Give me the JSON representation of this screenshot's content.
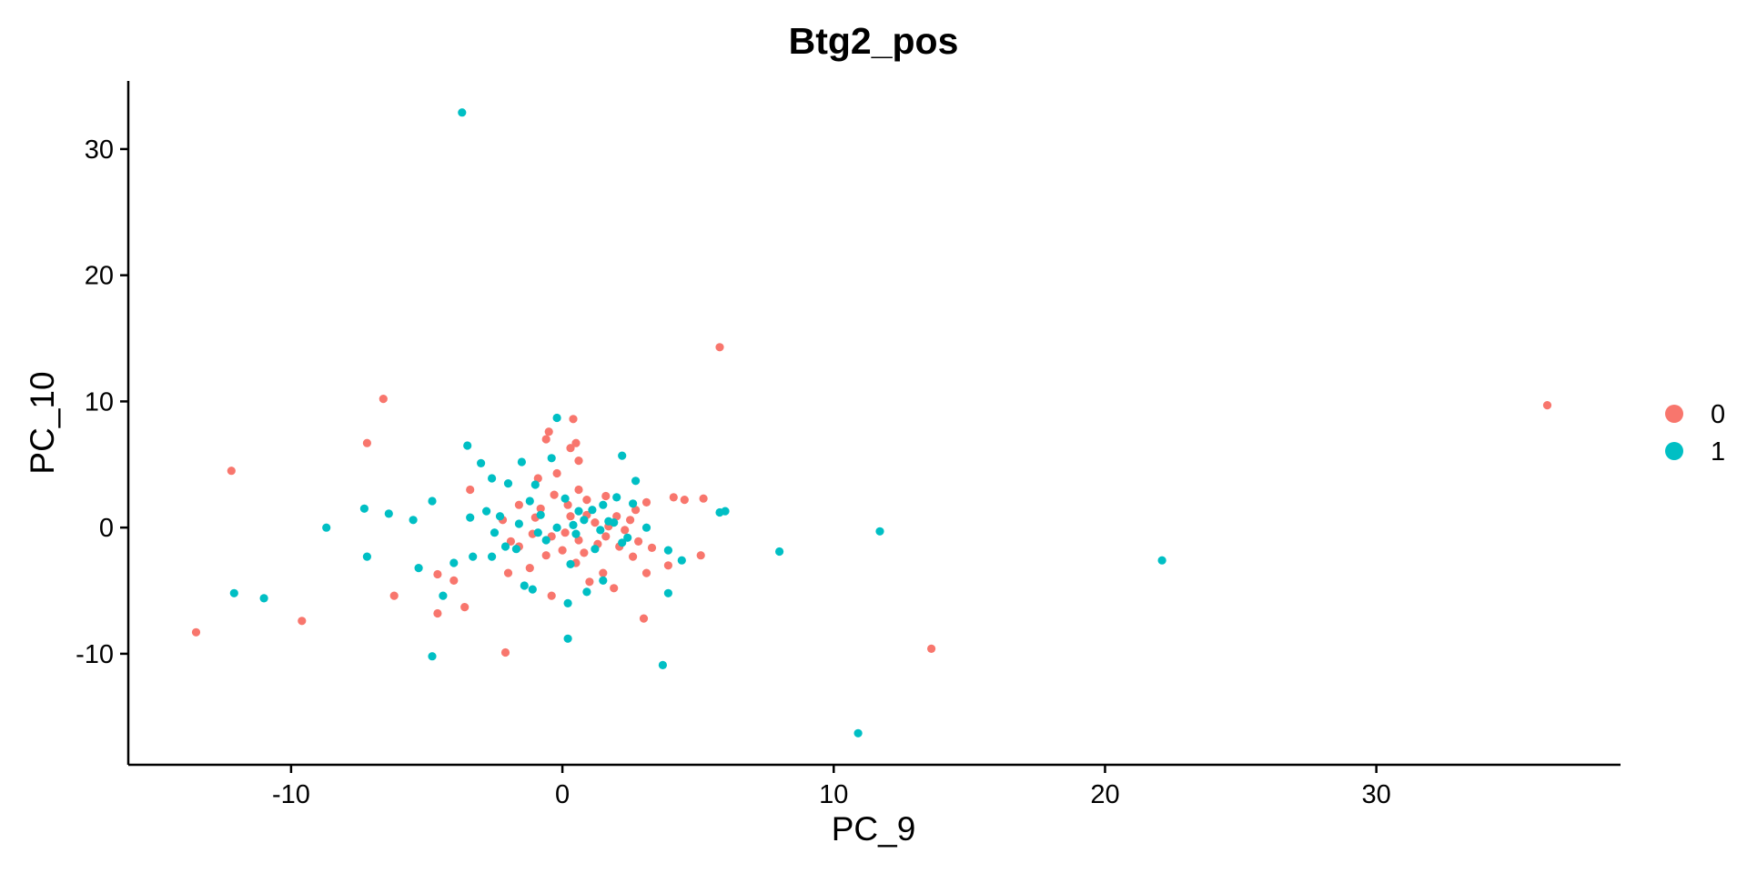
{
  "chart_data": {
    "type": "scatter",
    "title": "Btg2_pos",
    "xlabel": "PC_9",
    "ylabel": "PC_10",
    "xlim": [
      -16,
      39
    ],
    "ylim": [
      -18.8,
      35.4
    ],
    "x_ticks": [
      -10,
      0,
      10,
      20,
      30
    ],
    "y_ticks": [
      -10,
      0,
      10,
      20,
      30
    ],
    "x_tick_labels": [
      "-10",
      "0",
      "10",
      "20",
      "30"
    ],
    "y_tick_labels": [
      "-10",
      "0",
      "10",
      "20",
      "30"
    ],
    "grid": false,
    "legend_position": "right",
    "series": [
      {
        "name": "0",
        "color": "#F8766D",
        "points": [
          [
            36.3,
            9.7
          ],
          [
            5.8,
            14.3
          ],
          [
            -6.6,
            10.2
          ],
          [
            -7.2,
            6.7
          ],
          [
            -12.2,
            4.5
          ],
          [
            -13.5,
            -8.3
          ],
          [
            -9.6,
            -7.4
          ],
          [
            -6.2,
            -5.4
          ],
          [
            -4.6,
            -6.8
          ],
          [
            -4.6,
            -3.7
          ],
          [
            -3.6,
            -6.3
          ],
          [
            -2.1,
            -9.9
          ],
          [
            13.6,
            -9.6
          ],
          [
            3.0,
            -7.2
          ],
          [
            -0.5,
            7.6
          ],
          [
            0.4,
            8.6
          ],
          [
            0.3,
            6.3
          ],
          [
            0.5,
            6.7
          ],
          [
            0.6,
            5.3
          ],
          [
            -0.6,
            7.0
          ],
          [
            5.2,
            2.3
          ],
          [
            4.5,
            2.2
          ],
          [
            4.1,
            2.4
          ],
          [
            5.1,
            -2.2
          ],
          [
            3.9,
            -3.0
          ],
          [
            3.1,
            -3.6
          ],
          [
            2.7,
            1.4
          ],
          [
            3.1,
            2.0
          ],
          [
            1.6,
            2.5
          ],
          [
            2.1,
            -1.5
          ],
          [
            2.6,
            -2.3
          ],
          [
            1.0,
            -4.3
          ],
          [
            1.5,
            -3.6
          ],
          [
            1.9,
            -4.8
          ],
          [
            0.5,
            -2.8
          ],
          [
            -0.4,
            -5.4
          ],
          [
            -1.2,
            -3.2
          ],
          [
            -1.9,
            -1.1
          ],
          [
            -2.2,
            0.6
          ],
          [
            -1.6,
            1.8
          ],
          [
            -0.9,
            3.9
          ],
          [
            -0.2,
            4.3
          ],
          [
            0.6,
            3.0
          ],
          [
            0.9,
            2.2
          ],
          [
            -3.4,
            3.0
          ],
          [
            -1.6,
            -1.5
          ],
          [
            0.0,
            -1.8
          ],
          [
            -0.4,
            -0.7
          ],
          [
            0.3,
            0.9
          ],
          [
            0.6,
            -1.0
          ],
          [
            1.2,
            0.4
          ],
          [
            1.6,
            -0.7
          ],
          [
            2.0,
            0.9
          ],
          [
            2.3,
            -0.2
          ],
          [
            -0.8,
            1.5
          ],
          [
            -1.1,
            -0.5
          ],
          [
            -0.3,
            2.6
          ],
          [
            0.2,
            1.8
          ],
          [
            0.8,
            -2.0
          ],
          [
            1.3,
            -1.3
          ],
          [
            -2.0,
            -3.6
          ],
          [
            -4.0,
            -4.2
          ],
          [
            -1.0,
            0.8
          ],
          [
            0.1,
            -0.4
          ],
          [
            0.9,
            1.0
          ],
          [
            1.7,
            0.1
          ],
          [
            2.5,
            0.6
          ],
          [
            -0.6,
            -2.2
          ],
          [
            3.3,
            -1.6
          ],
          [
            2.8,
            -1.1
          ]
        ]
      },
      {
        "name": "1",
        "color": "#00BFC4",
        "points": [
          [
            -3.7,
            32.9
          ],
          [
            22.1,
            -2.6
          ],
          [
            11.7,
            -0.3
          ],
          [
            8.0,
            -1.9
          ],
          [
            10.9,
            -16.3
          ],
          [
            3.7,
            -10.9
          ],
          [
            0.2,
            -8.8
          ],
          [
            -4.8,
            -10.2
          ],
          [
            -12.1,
            -5.2
          ],
          [
            -11.0,
            -5.6
          ],
          [
            -8.7,
            0.0
          ],
          [
            -7.3,
            1.5
          ],
          [
            -7.2,
            -2.3
          ],
          [
            -6.4,
            1.1
          ],
          [
            -5.5,
            0.6
          ],
          [
            -5.3,
            -3.2
          ],
          [
            -4.8,
            2.1
          ],
          [
            -4.0,
            -2.8
          ],
          [
            -4.4,
            -5.4
          ],
          [
            -3.5,
            6.5
          ],
          [
            -3.0,
            5.1
          ],
          [
            -2.6,
            3.9
          ],
          [
            -1.5,
            5.2
          ],
          [
            -0.4,
            5.5
          ],
          [
            -0.2,
            8.7
          ],
          [
            0.9,
            -5.1
          ],
          [
            0.2,
            -6.0
          ],
          [
            1.5,
            -4.2
          ],
          [
            3.9,
            -5.2
          ],
          [
            4.4,
            -2.6
          ],
          [
            3.9,
            -1.8
          ],
          [
            5.8,
            1.2
          ],
          [
            6.0,
            1.3
          ],
          [
            3.1,
            0.0
          ],
          [
            2.2,
            5.7
          ],
          [
            2.7,
            3.7
          ],
          [
            2.0,
            2.4
          ],
          [
            1.5,
            1.8
          ],
          [
            -2.0,
            3.5
          ],
          [
            -1.0,
            3.4
          ],
          [
            -3.3,
            -2.3
          ],
          [
            -2.6,
            -2.3
          ],
          [
            -2.1,
            -1.5
          ],
          [
            -1.4,
            -4.6
          ],
          [
            -1.1,
            -4.9
          ],
          [
            0.3,
            -2.9
          ],
          [
            -0.8,
            1.0
          ],
          [
            -0.2,
            0.0
          ],
          [
            0.5,
            -0.5
          ],
          [
            1.1,
            1.4
          ],
          [
            1.4,
            -0.2
          ],
          [
            1.9,
            0.4
          ],
          [
            -2.8,
            1.3
          ],
          [
            -2.3,
            0.9
          ],
          [
            -1.6,
            0.3
          ],
          [
            -0.6,
            -1.0
          ],
          [
            0.1,
            2.3
          ],
          [
            0.8,
            0.6
          ],
          [
            2.4,
            -0.8
          ],
          [
            2.6,
            1.9
          ],
          [
            -3.4,
            0.8
          ],
          [
            -2.5,
            -0.4
          ],
          [
            -1.2,
            2.1
          ],
          [
            0.4,
            0.2
          ],
          [
            1.2,
            -1.7
          ],
          [
            -0.9,
            -0.4
          ],
          [
            1.7,
            0.5
          ],
          [
            -1.7,
            -1.7
          ],
          [
            0.6,
            1.3
          ],
          [
            2.2,
            -1.2
          ]
        ]
      }
    ]
  }
}
